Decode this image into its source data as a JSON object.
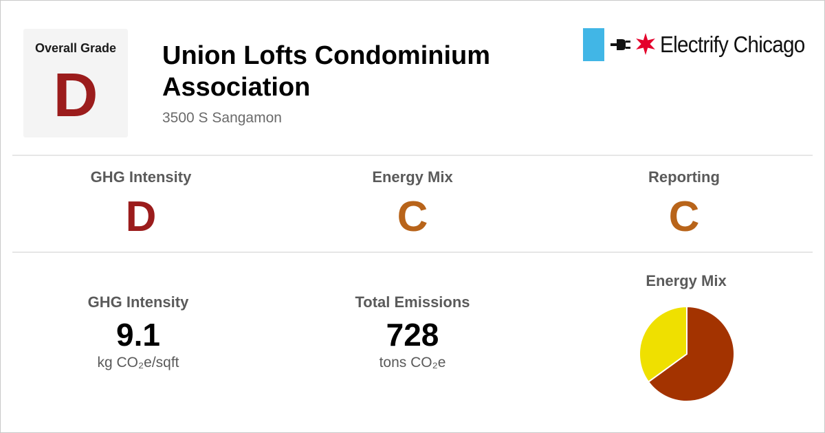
{
  "header": {
    "overall_grade_label": "Overall Grade",
    "overall_grade": "D",
    "overall_grade_color": "#9b1c1c",
    "building_name": "Union Lofts Condominium Association",
    "address": "3500 S Sangamon"
  },
  "logo": {
    "text": "Electrify Chicago",
    "stripe_color": "#41b6e6",
    "star_color": "#e4002b",
    "icons": [
      "plug-icon",
      "star-icon"
    ]
  },
  "grades": [
    {
      "title": "GHG Intensity",
      "grade": "D",
      "color": "#9b1c1c"
    },
    {
      "title": "Energy Mix",
      "grade": "C",
      "color": "#b8641a"
    },
    {
      "title": "Reporting",
      "grade": "C",
      "color": "#b8641a"
    }
  ],
  "stats": {
    "ghg_intensity": {
      "title": "GHG Intensity",
      "value": "9.1",
      "unit": "kg CO₂e/sqft"
    },
    "total_emissions": {
      "title": "Total Emissions",
      "value": "728",
      "unit": "tons CO₂e"
    }
  },
  "energy_mix": {
    "title": "Energy Mix"
  },
  "chart_data": {
    "type": "pie",
    "slices": [
      {
        "value": 65,
        "color": "#a33300"
      },
      {
        "value": 35,
        "color": "#efe000"
      }
    ]
  }
}
